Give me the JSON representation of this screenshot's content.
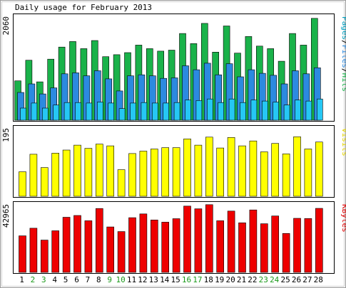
{
  "chart_data": {
    "type": "bar",
    "title": "Daily usage for February 2013",
    "categories": [
      "1",
      "2",
      "3",
      "4",
      "5",
      "6",
      "7",
      "8",
      "9",
      "10",
      "11",
      "12",
      "13",
      "14",
      "15",
      "16",
      "17",
      "18",
      "19",
      "20",
      "21",
      "22",
      "23",
      "24",
      "25",
      "26",
      "27",
      "28"
    ],
    "weekend_days": [
      "2",
      "3",
      "9",
      "10",
      "16",
      "17",
      "23",
      "24"
    ],
    "panels": [
      {
        "name": "hits",
        "max_label": "2060",
        "ymax": 2060,
        "side_label": [
          {
            "text": "Pages",
            "color": "#00a0c0"
          },
          {
            "text": "/",
            "color": "#000000"
          },
          {
            "text": "Files",
            "color": "#2c8ae0"
          },
          {
            "text": "/",
            "color": "#000000"
          },
          {
            "text": "Hits",
            "color": "#1ab24a"
          }
        ],
        "series": [
          {
            "name": "Hits",
            "color": "#1ab24a",
            "values": [
              780,
              1190,
              760,
              1210,
              1450,
              1560,
              1420,
              1580,
              1260,
              1300,
              1340,
              1490,
              1420,
              1370,
              1390,
              1720,
              1520,
              1920,
              1350,
              1870,
              1330,
              1660,
              1470,
              1420,
              1170,
              1720,
              1490,
              2020
            ]
          },
          {
            "name": "Files",
            "color": "#2c8ae0",
            "values": [
              550,
              720,
              520,
              640,
              920,
              940,
              880,
              980,
              820,
              580,
              880,
              900,
              880,
              830,
              840,
              1080,
              1000,
              1130,
              900,
              1120,
              860,
              1000,
              930,
              890,
              720,
              980,
              920,
              1040
            ]
          },
          {
            "name": "Pages",
            "color": "#26c7f4",
            "values": [
              240,
              340,
              240,
              300,
              350,
              350,
              340,
              360,
              340,
              230,
              340,
              350,
              340,
              340,
              350,
              400,
              390,
              420,
              350,
              420,
              350,
              400,
              380,
              360,
              300,
              400,
              380,
              420
            ]
          }
        ]
      },
      {
        "name": "visits",
        "max_label": "195",
        "ymax": 195,
        "side_label": [
          {
            "text": "Visits",
            "color": "#e6d600"
          }
        ],
        "series": [
          {
            "name": "Visits",
            "color": "#ffff00",
            "values": [
              70,
              120,
              82,
              123,
              132,
              146,
              137,
              149,
              144,
              76,
              122,
              129,
              135,
              139,
              139,
              164,
              146,
              169,
              138,
              168,
              144,
              158,
              127,
              151,
              121,
              170,
              135,
              155
            ]
          }
        ]
      },
      {
        "name": "kbytes",
        "max_label": "42965",
        "ymax": 42965,
        "side_label": [
          {
            "text": "KBytes",
            "color": "#e00000"
          }
        ],
        "series": [
          {
            "name": "KBytes",
            "color": "#ee0000",
            "values": [
              23000,
              27800,
              20300,
              26200,
              34700,
              35800,
              32500,
              40200,
              28600,
              25700,
              34400,
              36800,
              33000,
              31600,
              33800,
              41700,
              40000,
              42600,
              32500,
              38600,
              31200,
              39300,
              30600,
              35500,
              24500,
              34000,
              33900,
              40300
            ]
          }
        ]
      }
    ]
  }
}
